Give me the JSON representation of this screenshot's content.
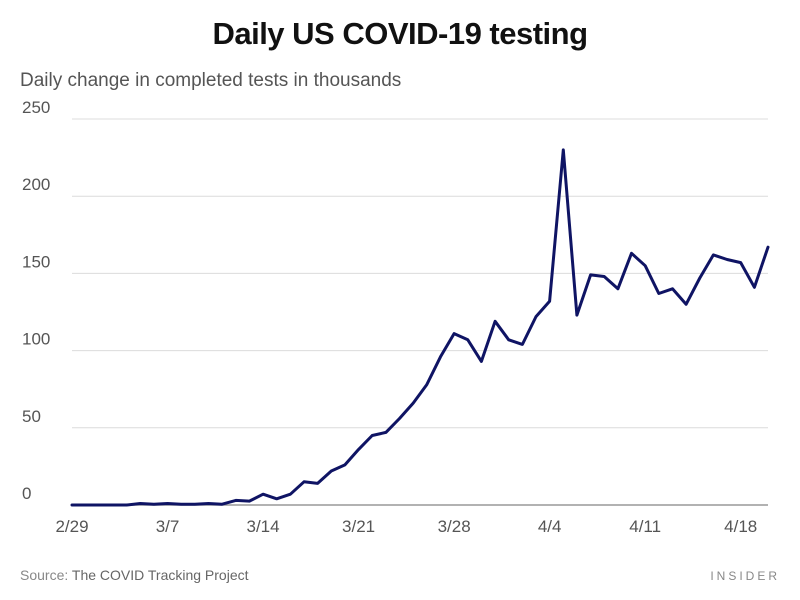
{
  "chart_data": {
    "type": "line",
    "title": "Daily US COVID-19 testing",
    "subtitle": "Daily change in completed tests in thousands",
    "xlabel": "",
    "ylabel": "",
    "ylim": [
      0,
      250
    ],
    "yticks": [
      0,
      50,
      100,
      150,
      200,
      250
    ],
    "xticks": [
      {
        "index": 0,
        "label": "2/29"
      },
      {
        "index": 7,
        "label": "3/7"
      },
      {
        "index": 14,
        "label": "3/14"
      },
      {
        "index": 21,
        "label": "3/21"
      },
      {
        "index": 28,
        "label": "3/28"
      },
      {
        "index": 35,
        "label": "4/4"
      },
      {
        "index": 42,
        "label": "4/11"
      },
      {
        "index": 49,
        "label": "4/18"
      }
    ],
    "line_color": "#0f1464",
    "series": [
      {
        "name": "Daily change in completed tests",
        "values": [
          0,
          0,
          0,
          0,
          0,
          1,
          0.5,
          1,
          0.5,
          0.5,
          1,
          0.5,
          3,
          2.5,
          7,
          4,
          7,
          15,
          14,
          22,
          26,
          36,
          45,
          47,
          56,
          66,
          78,
          96,
          111,
          107,
          93,
          119,
          107,
          104,
          122,
          132,
          230,
          123,
          149,
          148,
          140,
          163,
          155,
          137,
          140,
          130,
          147,
          162,
          159,
          157,
          141,
          167
        ]
      }
    ]
  },
  "footer": {
    "source_label": "Source:",
    "source_text": " The COVID Tracking Project",
    "brand": "INSIDER"
  }
}
